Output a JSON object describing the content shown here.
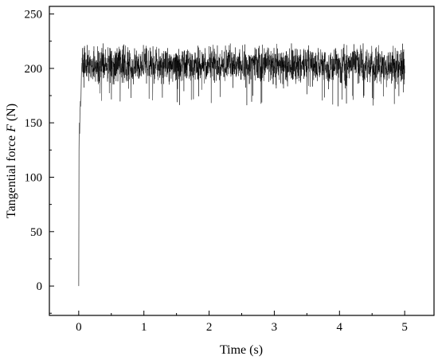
{
  "chart_data": {
    "type": "line",
    "title": "",
    "xlabel": "Time (s)",
    "ylabel_prefix": "Tangential force ",
    "ylabel_symbol": "F",
    "ylabel_suffix": " (N)",
    "xlim": [
      -0.45,
      5.45
    ],
    "ylim": [
      -27,
      257
    ],
    "x_ticks": [
      0,
      1,
      2,
      3,
      4,
      5
    ],
    "x_tick_labels": [
      "0",
      "1",
      "2",
      "3",
      "4",
      "5"
    ],
    "y_ticks": [
      0,
      50,
      100,
      150,
      200,
      250
    ],
    "y_tick_labels": [
      "0",
      "50",
      "100",
      "150",
      "200",
      "250"
    ],
    "grid": false,
    "legend": "none",
    "colors": {
      "line": "#000000",
      "axes": "#000000",
      "background": "#ffffff"
    },
    "series": [
      {
        "x": [
          0.0,
          0.005,
          0.01,
          0.015,
          0.02,
          0.025,
          0.03,
          0.035,
          0.04,
          0.045,
          0.05,
          0.055,
          0.06,
          0.07,
          0.08,
          0.1,
          0.15,
          0.2,
          0.25,
          0.3,
          0.5,
          1.0,
          1.5,
          1.75,
          2.0,
          2.5,
          3.0,
          3.5,
          4.0,
          4.5,
          5.0
        ],
        "y": [
          0,
          125,
          150,
          140,
          160,
          170,
          165,
          175,
          190,
          200,
          205,
          210,
          205,
          205,
          204,
          203,
          204,
          203,
          204,
          205,
          204,
          203,
          204,
          203,
          203,
          204,
          203,
          203,
          204,
          203,
          203
        ]
      }
    ],
    "noise": {
      "x_start": 0.05,
      "x_end": 5.0,
      "mean": 203,
      "envelope_low": 165,
      "envelope_high": 223
    }
  }
}
